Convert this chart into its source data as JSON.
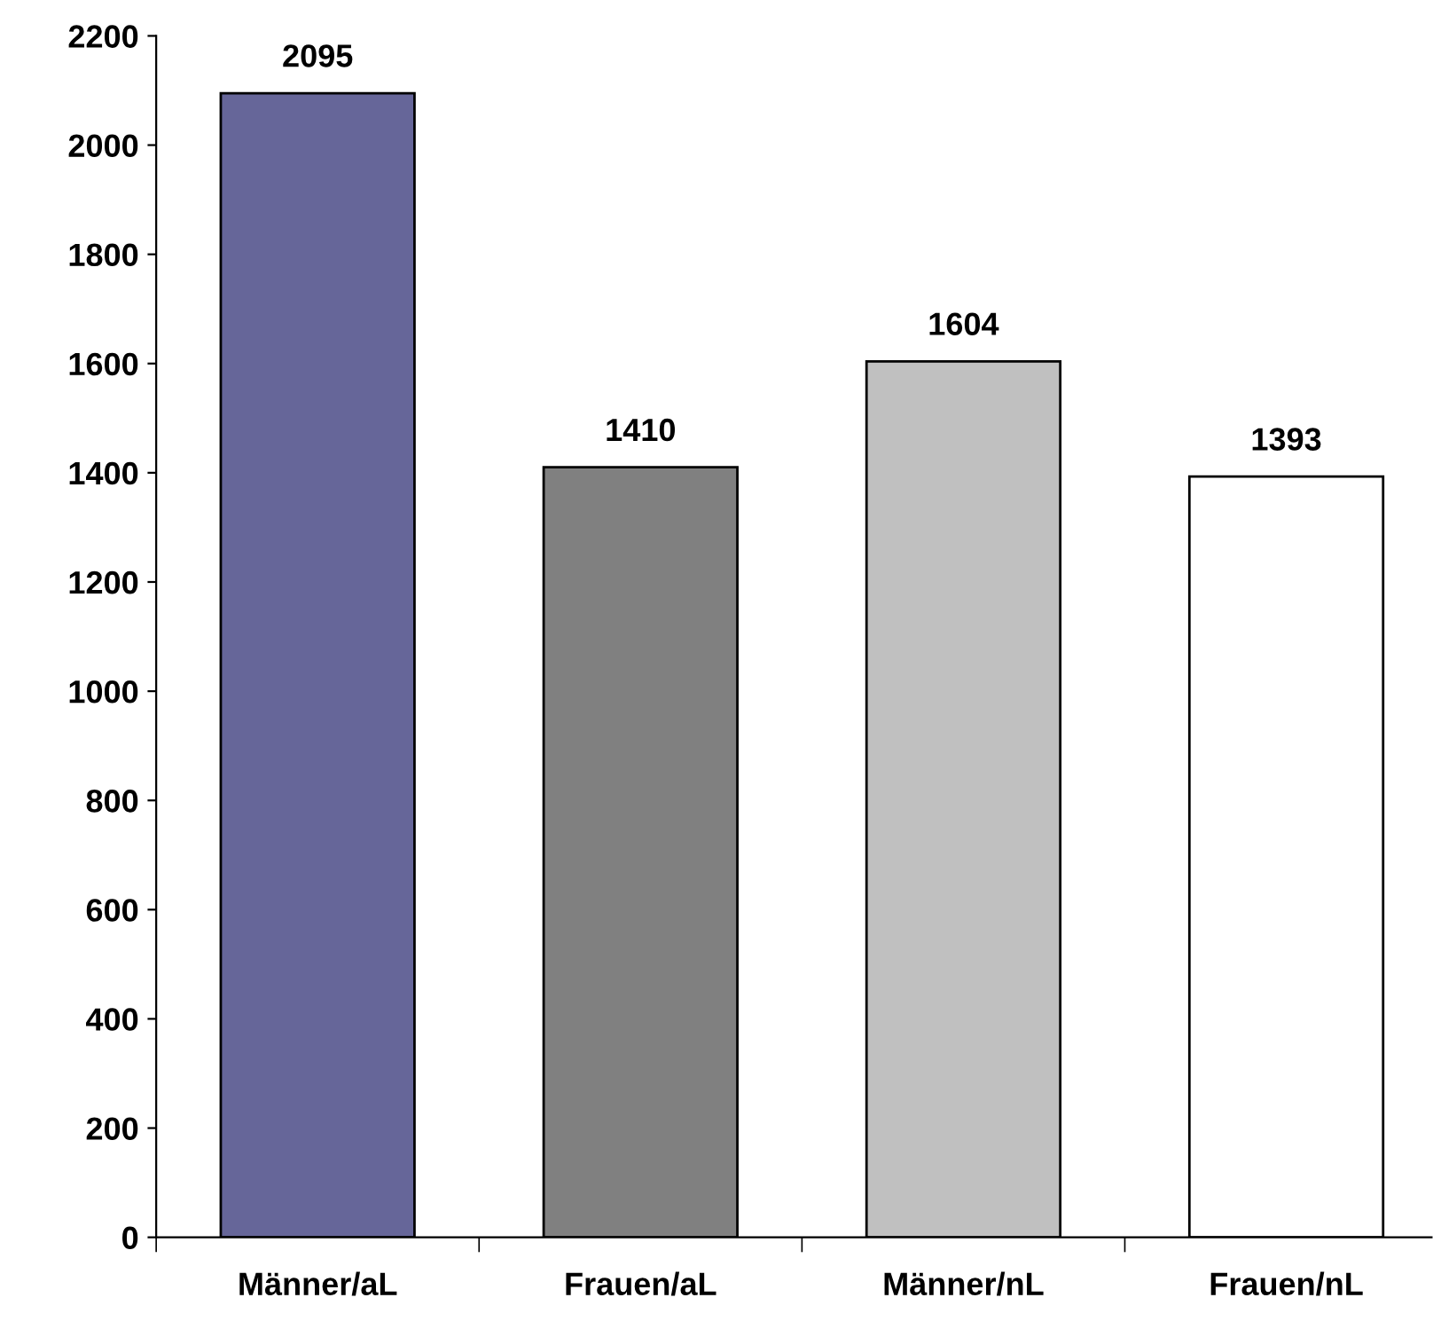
{
  "chart_data": {
    "type": "bar",
    "categories": [
      "Männer/aL",
      "Frauen/aL",
      "Männer/nL",
      "Frauen/nL"
    ],
    "values": [
      2095,
      1410,
      1604,
      1393
    ],
    "colors": [
      "#666699",
      "#808080",
      "#c0c0c0",
      "#ffffff"
    ],
    "ylim": [
      0,
      2200
    ],
    "yticks": [
      0,
      200,
      400,
      600,
      800,
      1000,
      1200,
      1400,
      1600,
      1800,
      2000,
      2200
    ],
    "data_labels": true,
    "grid": false,
    "legend": false
  }
}
